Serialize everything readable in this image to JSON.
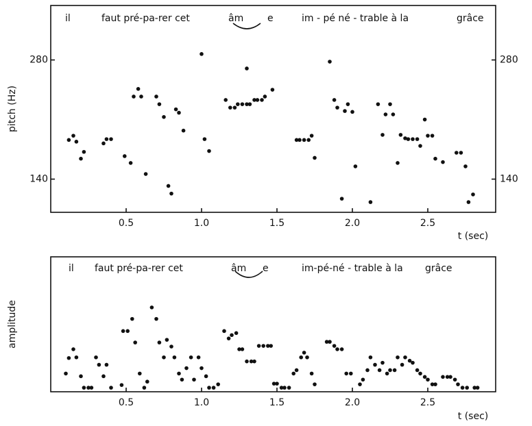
{
  "chart_data": [
    {
      "type": "scatter",
      "y_label": "pitch (Hz)",
      "x_label": "t (sec)",
      "annotations": [
        "il",
        "faut pré-pa-rer cet",
        "âm",
        "e",
        "im - pé né - trable à la",
        "grâce"
      ],
      "xlim": [
        0,
        2.95
      ],
      "ylim": [
        101,
        344
      ],
      "y2lim": [
        101,
        344
      ],
      "xticks": [
        0.5,
        {
          "value": 1,
          "label": "1.0"
        },
        1.5,
        {
          "value": 2,
          "label": "2.0"
        },
        2.5
      ],
      "yticks": [
        140,
        280
      ],
      "y2ticks": [
        140,
        280
      ],
      "series": [
        {
          "color": "#111111",
          "x": [
            0.12,
            0.15,
            0.17,
            0.2,
            0.22,
            0.35,
            0.37,
            0.4,
            0.49,
            0.53,
            0.55,
            0.58,
            0.6,
            0.63,
            0.7,
            0.72,
            0.75,
            0.78,
            0.8,
            0.83,
            0.85,
            0.88,
            1.0,
            1.02,
            1.05,
            1.16,
            1.19,
            1.22,
            1.24,
            1.27,
            1.3,
            1.3,
            1.32,
            1.35,
            1.37,
            1.4,
            1.42,
            1.47,
            1.63,
            1.65,
            1.68,
            1.71,
            1.73,
            1.75,
            1.85,
            1.88,
            1.9,
            1.93,
            1.95,
            1.97,
            2.0,
            2.02,
            2.12,
            2.17,
            2.2,
            2.22,
            2.25,
            2.27,
            2.3,
            2.32,
            2.35,
            2.37,
            2.4,
            2.43,
            2.45,
            2.48,
            2.5,
            2.53,
            2.55,
            2.6,
            2.69,
            2.72,
            2.75,
            2.77,
            2.8
          ],
          "values": [
            186,
            191,
            184,
            164,
            172,
            182,
            187,
            187,
            167,
            159,
            237,
            246,
            237,
            146,
            237,
            228,
            213,
            132,
            123,
            222,
            218,
            197,
            287,
            187,
            173,
            233,
            224,
            224,
            228,
            228,
            228,
            270,
            228,
            233,
            233,
            233,
            237,
            245,
            186,
            186,
            186,
            186,
            191,
            165,
            278,
            233,
            224,
            117,
            220,
            228,
            219,
            155,
            113,
            228,
            192,
            216,
            228,
            216,
            159,
            192,
            188,
            187,
            187,
            187,
            179,
            210,
            191,
            191,
            164,
            160,
            171,
            171,
            155,
            113,
            122
          ]
        }
      ]
    },
    {
      "type": "scatter",
      "y_label": "amplitude",
      "x_label": "t (sec)",
      "annotations": [
        "il",
        "faut pré-pa-rer cet",
        "âm",
        "e",
        "im-pé-né - trable à la",
        "grâce"
      ],
      "xlim": [
        0,
        2.95
      ],
      "ylim": [
        0,
        20
      ],
      "xticks": [
        0.5,
        {
          "value": 1,
          "label": "1.0"
        },
        1.5,
        {
          "value": 2,
          "label": "2.0"
        },
        2.5
      ],
      "series": [
        {
          "color": "#111111",
          "x": [
            0.1,
            0.12,
            0.15,
            0.17,
            0.2,
            0.22,
            0.25,
            0.27,
            0.3,
            0.32,
            0.35,
            0.37,
            0.4,
            0.47,
            0.48,
            0.51,
            0.54,
            0.56,
            0.59,
            0.62,
            0.64,
            0.67,
            0.7,
            0.72,
            0.75,
            0.77,
            0.8,
            0.82,
            0.85,
            0.87,
            0.9,
            0.93,
            0.95,
            0.98,
            1.0,
            1.03,
            1.05,
            1.08,
            1.11,
            1.15,
            1.18,
            1.2,
            1.23,
            1.25,
            1.27,
            1.3,
            1.33,
            1.35,
            1.38,
            1.41,
            1.44,
            1.46,
            1.48,
            1.5,
            1.53,
            1.55,
            1.58,
            1.61,
            1.63,
            1.66,
            1.68,
            1.7,
            1.73,
            1.75,
            1.83,
            1.85,
            1.88,
            1.9,
            1.93,
            1.96,
            1.99,
            2.05,
            2.07,
            2.1,
            2.12,
            2.15,
            2.18,
            2.2,
            2.23,
            2.25,
            2.28,
            2.3,
            2.33,
            2.35,
            2.38,
            2.4,
            2.43,
            2.45,
            2.48,
            2.5,
            2.53,
            2.55,
            2.6,
            2.63,
            2.65,
            2.68,
            2.7,
            2.73,
            2.76,
            2.81,
            2.83
          ],
          "values": [
            2.7,
            5.0,
            6.3,
            5.1,
            2.3,
            0.6,
            0.6,
            0.6,
            5.1,
            4.0,
            2.3,
            4.0,
            0.6,
            1.0,
            9.0,
            9.0,
            10.8,
            7.3,
            2.7,
            0.6,
            1.5,
            12.5,
            10.8,
            7.3,
            5.1,
            7.7,
            6.7,
            5.1,
            2.7,
            1.8,
            3.5,
            5.1,
            1.8,
            5.1,
            3.5,
            2.3,
            0.6,
            0.6,
            1.1,
            9.0,
            7.9,
            8.4,
            8.7,
            6.3,
            6.3,
            4.5,
            4.5,
            4.5,
            6.8,
            6.8,
            6.8,
            6.8,
            1.2,
            1.2,
            0.6,
            0.6,
            0.6,
            2.7,
            3.2,
            5.1,
            5.8,
            5.1,
            2.7,
            1.1,
            7.4,
            7.4,
            6.8,
            6.3,
            6.3,
            2.7,
            2.7,
            1.1,
            1.8,
            3.2,
            5.1,
            4.0,
            3.2,
            4.3,
            2.7,
            3.2,
            3.2,
            5.1,
            4.0,
            5.1,
            4.6,
            4.3,
            3.2,
            2.7,
            2.2,
            1.8,
            1.1,
            1.1,
            2.2,
            2.2,
            2.2,
            1.8,
            1.1,
            0.6,
            0.6,
            0.6,
            0.6
          ]
        }
      ]
    }
  ]
}
